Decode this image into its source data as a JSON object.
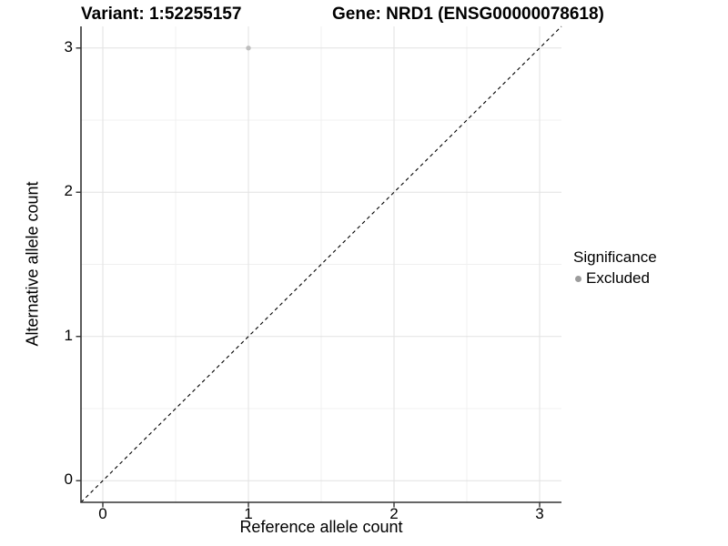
{
  "chart_data": {
    "type": "scatter",
    "titles": [
      "Variant: 1:52255157",
      "Gene: NRD1 (ENSG00000078618)"
    ],
    "xlabel": "Reference allele count",
    "ylabel": "Alternative allele count",
    "xlim": [
      -0.15,
      3.15
    ],
    "ylim": [
      -0.15,
      3.15
    ],
    "x_ticks": [
      0,
      1,
      2,
      3
    ],
    "y_ticks": [
      0,
      1,
      2,
      3
    ],
    "x_minor_ticks": [
      0.5,
      1.5,
      2.5
    ],
    "y_minor_ticks": [
      0.5,
      1.5,
      2.5
    ],
    "grid": "major+minor",
    "legend_position": "right",
    "series": [
      {
        "name": "Excluded",
        "color": "#bebebe",
        "points": [
          {
            "x": 1,
            "y": 3
          }
        ]
      }
    ],
    "reference_line": {
      "type": "identity",
      "slope": 1,
      "intercept": 0,
      "style": "dashed",
      "color": "#000000"
    }
  },
  "legend": {
    "title": "Significance",
    "items": [
      {
        "label": "Excluded",
        "swatch_color": "#9c9c9c"
      }
    ]
  },
  "colors": {
    "background": "#ffffff",
    "grid_major": "#e2e2e2",
    "grid_minor": "#f0f0f0",
    "axis_line": "#333333",
    "tick_mark": "#333333",
    "text": "#000000"
  }
}
